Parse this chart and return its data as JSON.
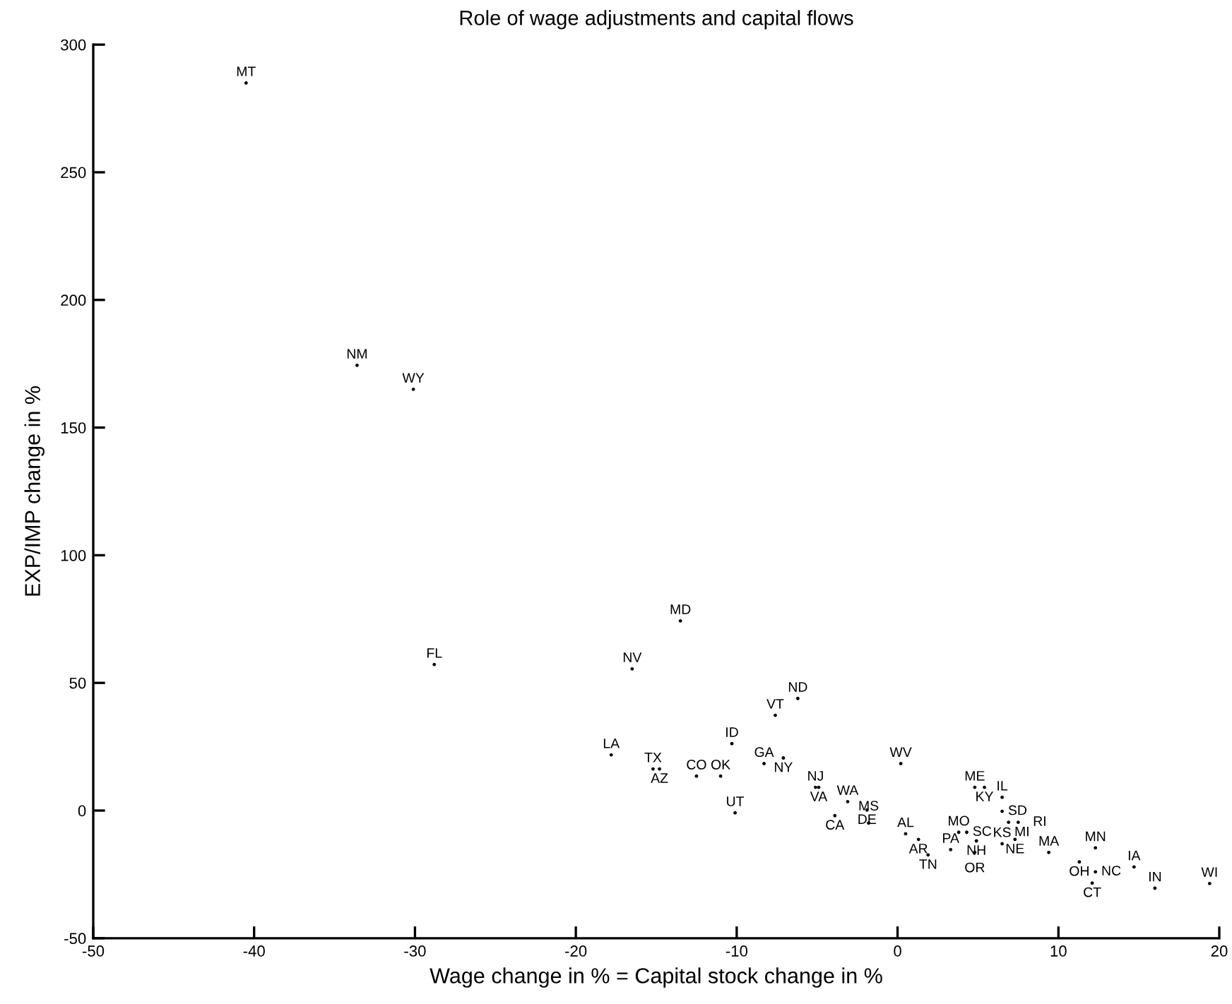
{
  "chart_data": {
    "type": "scatter",
    "title": "Role of wage adjustments and capital flows",
    "xlabel": "Wage change in % = Capital stock change in %",
    "ylabel": "EXP/IMP change in %",
    "xlim": [
      -50,
      20
    ],
    "xticks": [
      -50,
      -40,
      -30,
      -20,
      -10,
      0,
      10,
      20
    ],
    "ylim": [
      -50,
      300
    ],
    "yticks": [
      -50,
      0,
      50,
      100,
      150,
      200,
      250,
      300
    ],
    "grid": false,
    "marker": "circle",
    "series": [
      {
        "color": "#000000",
        "x": [
          -40.5,
          -33.6,
          -30.1,
          -13.5,
          -28.8,
          -16.5,
          -6.2,
          -7.6,
          -10.3,
          -17.8,
          -15.2,
          -14.8,
          -12.5,
          -11.0,
          -8.3,
          -7.1,
          -10.1,
          -5.1,
          -4.9,
          0.2,
          4.8,
          5.4,
          -3.1,
          -1.9,
          -3.9,
          -1.8,
          0.5,
          1.3,
          1.9,
          3.3,
          3.8,
          4.3,
          4.9,
          4.8,
          6.5,
          7.3,
          6.5,
          6.5,
          6.9,
          7.5,
          9.4,
          12.3,
          11.3,
          12.3,
          12.1,
          14.7,
          16.0,
          19.4
        ],
        "values": [
          285,
          174.4,
          165,
          74.3,
          57.2,
          55.5,
          43.9,
          37.3,
          26.2,
          21.8,
          16.3,
          16.3,
          13.5,
          13.5,
          18.4,
          20.6,
          -0.9,
          9.1,
          9.1,
          18.4,
          9.1,
          9.1,
          3.5,
          0.2,
          -2.0,
          -4.9,
          -9.1,
          -11.3,
          -17.4,
          -15.3,
          -8.5,
          -8.5,
          -11.9,
          -16.4,
          -13.0,
          -11.3,
          5.2,
          -0.3,
          -4.6,
          -4.6,
          -16.4,
          -14.6,
          -20.1,
          -24.0,
          -28.4,
          -22.1,
          -30.4,
          -28.6
        ],
        "value_labels": [
          "MT",
          "NM",
          "WY",
          "MD",
          "FL",
          "NV",
          "ND",
          "VT",
          "ID",
          "LA",
          "TX",
          "AZ",
          "CO",
          "OK",
          "GA",
          "NY",
          "UT",
          "NJ",
          "VA",
          "WV",
          "ME",
          "KY",
          "WA",
          "DE",
          "CA",
          "MS",
          "AL",
          "AR",
          "TN",
          "PA",
          "MO",
          "SC",
          "NH",
          "OR",
          "KS",
          "NE",
          "IL",
          "SD",
          "MI",
          "RI",
          "MA",
          "MN",
          "OH",
          "NC",
          "CT",
          "IA",
          "IN",
          "WI"
        ]
      }
    ]
  }
}
